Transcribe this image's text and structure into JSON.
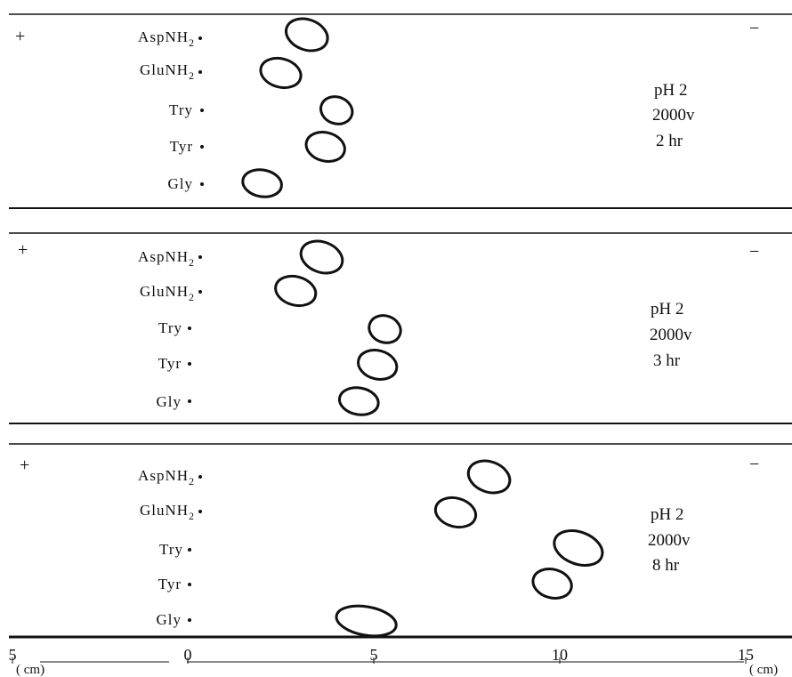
{
  "panels": [
    {
      "plus": "+",
      "minus": "−",
      "ph": "pH  2",
      "voltage": "2000v",
      "time": "2 hr",
      "rows": [
        {
          "sub": "AspNH",
          "idx": "2",
          "spot_cm": 3.2
        },
        {
          "sub": "GluNH",
          "idx": "2",
          "spot_cm": 2.5
        },
        {
          "sub": "Try",
          "idx": "",
          "spot_cm": 4.0
        },
        {
          "sub": "Tyr",
          "idx": "",
          "spot_cm": 3.7
        },
        {
          "sub": "Gly",
          "idx": "",
          "spot_cm": 2.0
        }
      ]
    },
    {
      "plus": "+",
      "minus": "−",
      "ph": "pH  2",
      "voltage": "2000v",
      "time": "3 hr",
      "rows": [
        {
          "sub": "AspNH",
          "idx": "2",
          "spot_cm": 3.6
        },
        {
          "sub": "GluNH",
          "idx": "2",
          "spot_cm": 2.9
        },
        {
          "sub": "Try",
          "idx": "",
          "spot_cm": 5.3
        },
        {
          "sub": "Tyr",
          "idx": "",
          "spot_cm": 5.1
        },
        {
          "sub": "Gly",
          "idx": "",
          "spot_cm": 4.6
        }
      ]
    },
    {
      "plus": "+",
      "minus": "−",
      "ph": "pH  2",
      "voltage": "2000v",
      "time": "8 hr",
      "rows": [
        {
          "sub": "AspNH",
          "idx": "2",
          "spot_cm": 8.1
        },
        {
          "sub": "GluNH",
          "idx": "2",
          "spot_cm": 7.2
        },
        {
          "sub": "Try",
          "idx": "",
          "spot_cm": 10.5
        },
        {
          "sub": "Tyr",
          "idx": "",
          "spot_cm": 9.8
        },
        {
          "sub": "Gly",
          "idx": "",
          "spot_cm": 4.8
        }
      ]
    }
  ],
  "axis": {
    "unit": "( cm)",
    "unit_right": "( cm)",
    "ticks": [
      {
        "value": -5,
        "label": "5"
      },
      {
        "value": 0,
        "label": "0"
      },
      {
        "value": 5,
        "label": "5"
      },
      {
        "value": 10,
        "label": "10"
      },
      {
        "value": 15,
        "label": "15"
      }
    ]
  }
}
